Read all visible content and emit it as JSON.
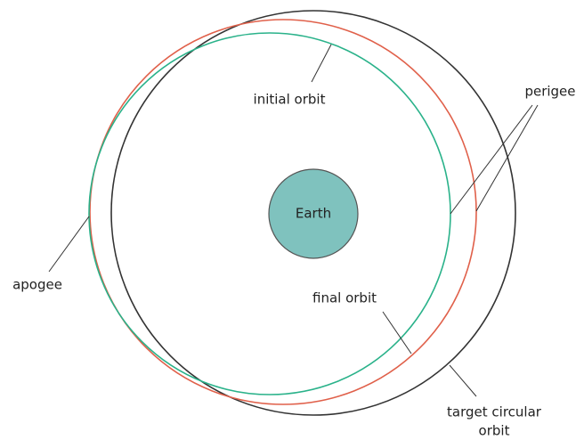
{
  "nodes": [
    {
      "label": "Earth"
    },
    {
      "label": "initial orbit"
    },
    {
      "label": "final orbit"
    },
    {
      "label": [
        "target circular",
        "orbit"
      ]
    },
    {
      "label": "perigee"
    },
    {
      "label": "apogee"
    }
  ]
}
